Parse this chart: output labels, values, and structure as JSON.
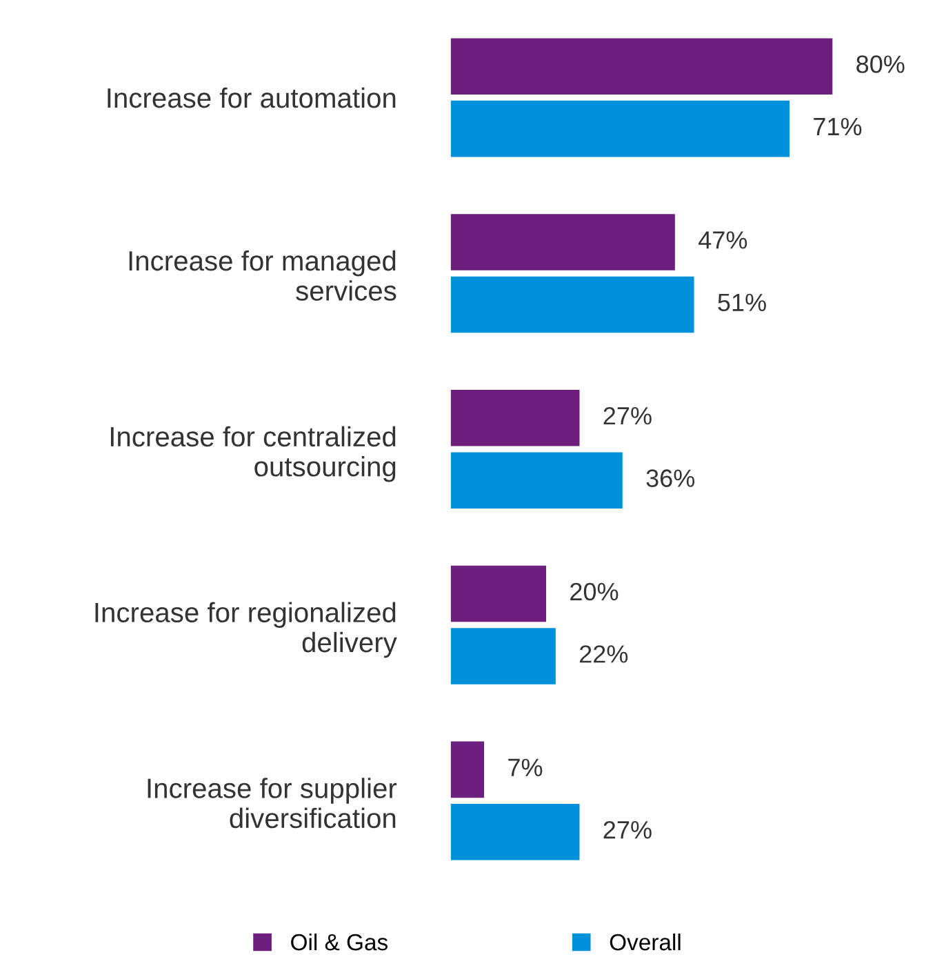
{
  "chart_data": {
    "type": "bar",
    "orientation": "horizontal",
    "categories": [
      "Increase for automation",
      "Increase for managed\nservices",
      "Increase for centralized\noutsourcing",
      "Increase for regionalized\ndelivery",
      "Increase for supplier\ndiversification"
    ],
    "series": [
      {
        "name": "Oil & Gas",
        "color": "#6d1f7e",
        "values": [
          80,
          47,
          27,
          20,
          7
        ],
        "value_labels": [
          "80%",
          "47%",
          "27%",
          "20%",
          "7%"
        ]
      },
      {
        "name": "Overall",
        "color": "#0091da",
        "values": [
          71,
          51,
          36,
          22,
          27
        ],
        "value_labels": [
          "71%",
          "51%",
          "36%",
          "22%",
          "27%"
        ]
      }
    ],
    "legend": "bottom",
    "grid": false
  }
}
